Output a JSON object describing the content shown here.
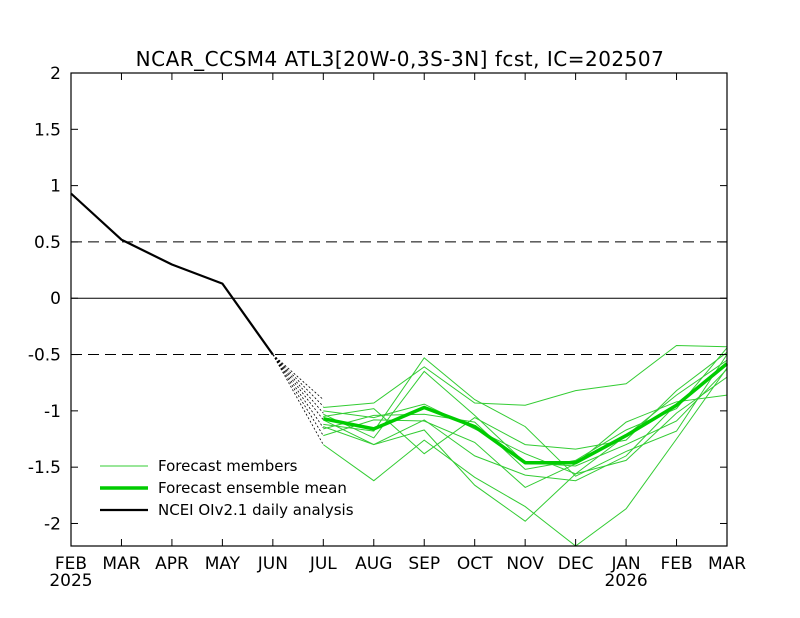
{
  "chart_data": {
    "type": "line",
    "title": "NCAR_CCSM4 ATL3[20W-0,3S-3N] fcst, IC=202507",
    "x_categories": [
      "FEB",
      "MAR",
      "APR",
      "MAY",
      "JUN",
      "JUL",
      "AUG",
      "SEP",
      "OCT",
      "NOV",
      "DEC",
      "JAN",
      "FEB",
      "MAR"
    ],
    "year_labels": [
      {
        "index": 0,
        "label": "2025"
      },
      {
        "index": 11,
        "label": "2026"
      }
    ],
    "ylim": [
      -2.2,
      2
    ],
    "y_ticks": [
      2,
      1.5,
      1,
      0.5,
      0,
      -0.5,
      -1,
      -1.5,
      -2
    ],
    "y_tick_labels": [
      "2",
      "1.5",
      "1",
      "0.5",
      "0",
      "-0.5",
      "-1",
      "-1.5",
      "-2"
    ],
    "reference_lines": [
      {
        "y": 0.5,
        "style": "dashed"
      },
      {
        "y": 0,
        "style": "solid"
      },
      {
        "y": -0.5,
        "style": "dashed"
      }
    ],
    "legend": {
      "placement": "bottom-left",
      "entries": [
        "Forecast members",
        "Forecast ensemble mean",
        "NCEI OIv2.1 daily analysis"
      ]
    },
    "colors": {
      "members": "#33cc33",
      "mean": "#00cc00",
      "analysis": "#000000",
      "daily_spread": "#000000"
    },
    "series": [
      {
        "name": "NCEI OIv2.1 daily analysis",
        "role": "analysis",
        "x": [
          0,
          1,
          2,
          3,
          4
        ],
        "y": [
          0.93,
          0.52,
          0.3,
          0.13,
          -0.5
        ]
      },
      {
        "name": "Forecast ensemble mean",
        "role": "mean",
        "x": [
          5,
          6,
          7,
          8,
          9,
          10,
          11,
          12,
          13
        ],
        "y": [
          -1.07,
          -1.16,
          -0.97,
          -1.14,
          -1.46,
          -1.46,
          -1.22,
          -0.95,
          -0.58
        ]
      },
      {
        "name": "Forecast members",
        "role": "members",
        "members": [
          {
            "x": [
              5,
              6,
              7,
              8,
              9,
              10,
              11,
              12,
              13
            ],
            "y": [
              -0.97,
              -0.93,
              -0.61,
              -0.93,
              -0.95,
              -0.82,
              -0.76,
              -0.42,
              -0.43
            ]
          },
          {
            "x": [
              5,
              6,
              7,
              8,
              9,
              10,
              11,
              12,
              13
            ],
            "y": [
              -1.3,
              -1.62,
              -1.26,
              -1.59,
              -1.85,
              -2.2,
              -1.87,
              -1.25,
              -0.62
            ]
          },
          {
            "x": [
              5,
              6,
              7,
              8,
              9,
              10,
              11,
              12,
              13
            ],
            "y": [
              -1.12,
              -1.18,
              -0.53,
              -0.9,
              -1.14,
              -1.58,
              -1.36,
              -1.18,
              -0.5
            ]
          },
          {
            "x": [
              5,
              6,
              7,
              8,
              9,
              10,
              11,
              12,
              13
            ],
            "y": [
              -1.05,
              -0.98,
              -1.38,
              -1.06,
              -1.3,
              -1.34,
              -1.26,
              -0.82,
              -0.48
            ]
          },
          {
            "x": [
              5,
              6,
              7,
              8,
              9,
              10,
              11,
              12,
              13
            ],
            "y": [
              -1.22,
              -1.08,
              -1.09,
              -1.28,
              -1.68,
              -1.47,
              -1.1,
              -0.92,
              -0.86
            ]
          },
          {
            "x": [
              5,
              6,
              7,
              8,
              9,
              10,
              11,
              12,
              13
            ],
            "y": [
              -1.03,
              -1.24,
              -0.65,
              -1.04,
              -1.46,
              -1.49,
              -1.3,
              -1.09,
              -0.63
            ]
          },
          {
            "x": [
              5,
              6,
              7,
              8,
              9,
              10,
              11,
              12,
              13
            ],
            "y": [
              -1.14,
              -1.3,
              -1.08,
              -1.4,
              -1.57,
              -1.62,
              -1.4,
              -0.94,
              -0.58
            ]
          },
          {
            "x": [
              5,
              6,
              7,
              8,
              9,
              10,
              11,
              12,
              13
            ],
            "y": [
              -1.0,
              -1.06,
              -0.94,
              -1.16,
              -1.38,
              -1.56,
              -1.44,
              -1.02,
              -0.7
            ]
          },
          {
            "x": [
              5,
              6,
              7,
              8,
              9,
              10,
              11,
              12,
              13
            ],
            "y": [
              -1.16,
              -1.04,
              -1.03,
              -1.1,
              -1.52,
              -1.44,
              -1.17,
              -0.98,
              -0.44
            ]
          },
          {
            "x": [
              5,
              6,
              7,
              8,
              9,
              10,
              11,
              12,
              13
            ],
            "y": [
              -1.08,
              -1.3,
              -1.17,
              -1.66,
              -1.98,
              -1.56,
              -1.22,
              -0.86,
              -0.55
            ]
          }
        ]
      }
    ],
    "daily_spread": {
      "start": {
        "x": 4,
        "y": -0.5
      },
      "end_x": 5,
      "end_y": [
        -1.3,
        -1.22,
        -1.15,
        -1.08,
        -1.02,
        -0.96,
        -0.9
      ]
    }
  }
}
